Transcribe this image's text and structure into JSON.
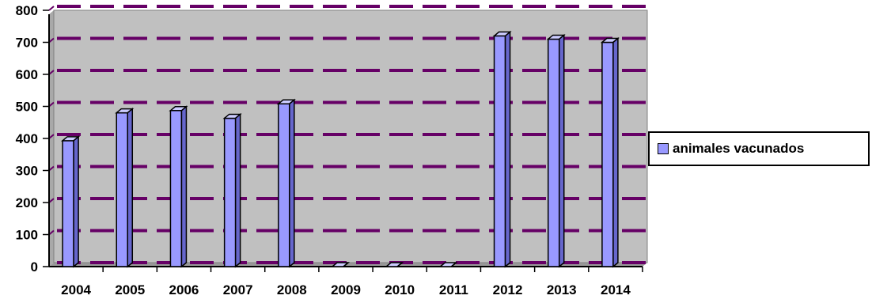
{
  "chart_data": {
    "type": "bar",
    "categories": [
      "2004",
      "2005",
      "2006",
      "2007",
      "2008",
      "2009",
      "2010",
      "2011",
      "2012",
      "2013",
      "2014"
    ],
    "series": [
      {
        "name": "animales vacunados",
        "values": [
          393,
          480,
          487,
          463,
          508,
          0,
          0,
          0,
          720,
          710,
          700
        ]
      }
    ],
    "y_ticks": [
      "0",
      "100",
      "200",
      "300",
      "400",
      "500",
      "600",
      "700",
      "800"
    ],
    "ylim": [
      0,
      800
    ],
    "grid": true,
    "legend_position": "right",
    "colors": {
      "bar_front": "#9999ff",
      "bar_top": "#ccccff",
      "bar_side": "#6666cc",
      "plot_background": "#c0c0c0",
      "gridline": "#660066"
    }
  }
}
